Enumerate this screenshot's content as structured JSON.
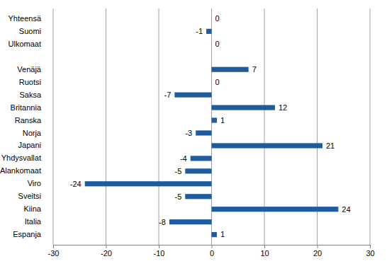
{
  "chart_data": {
    "type": "bar",
    "orientation": "horizontal",
    "categories": [
      "Yhteensä",
      "Suomi",
      "Ulkomaat",
      null,
      "Venäjä",
      "Ruotsi",
      "Saksa",
      "Britannia",
      "Ranska",
      "Norja",
      "Japani",
      "Yhdysvallat",
      "Alankomaat",
      "Viro",
      "Sveitsi",
      "Kiina",
      "Italia",
      "Espanja"
    ],
    "values": [
      0,
      -1,
      0,
      null,
      7,
      0,
      -7,
      12,
      1,
      -3,
      21,
      -4,
      -5,
      -24,
      -5,
      24,
      -8,
      1
    ],
    "color": "#1f5c9e",
    "xlim": [
      -30,
      30
    ],
    "xticks": [
      -30,
      -20,
      -10,
      0,
      10,
      20,
      30
    ],
    "grid": true,
    "data_labels": true
  }
}
